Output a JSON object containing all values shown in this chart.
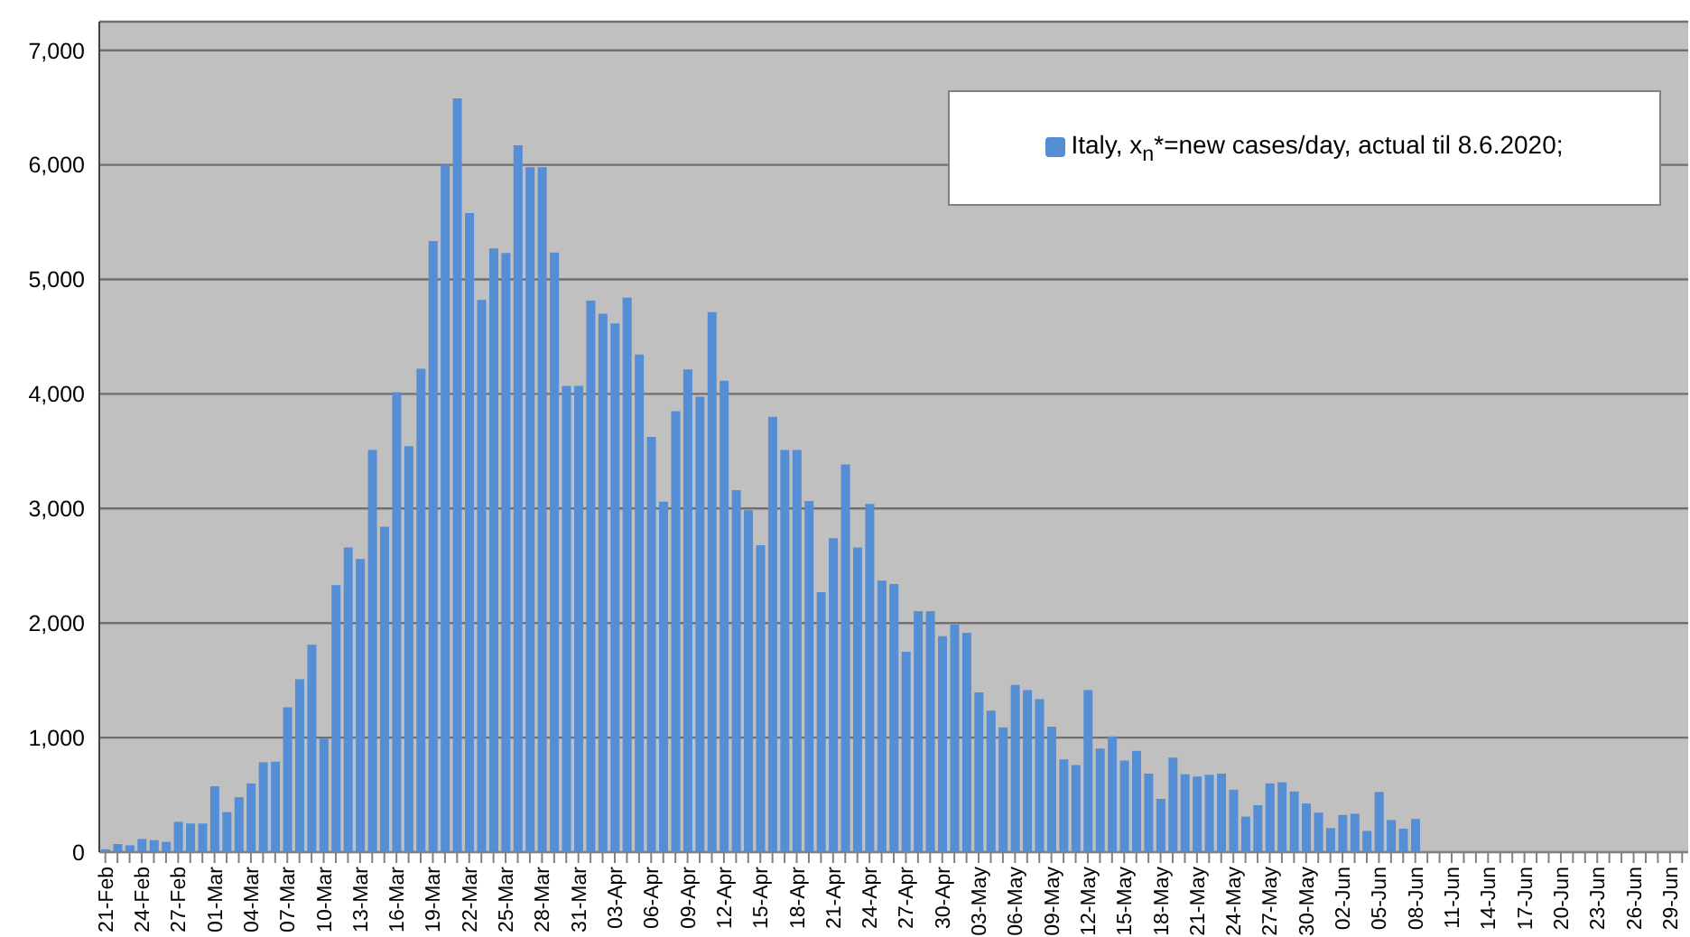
{
  "chart_data": {
    "type": "bar",
    "categories": [
      "21-Feb",
      null,
      null,
      "24-Feb",
      null,
      null,
      "27-Feb",
      null,
      null,
      "01-Mar",
      null,
      null,
      "04-Mar",
      null,
      null,
      "07-Mar",
      null,
      null,
      "10-Mar",
      null,
      null,
      "13-Mar",
      null,
      null,
      "16-Mar",
      null,
      null,
      "19-Mar",
      null,
      null,
      "22-Mar",
      null,
      null,
      "25-Mar",
      null,
      null,
      "28-Mar",
      null,
      null,
      "31-Mar",
      null,
      null,
      "03-Apr",
      null,
      null,
      "06-Apr",
      null,
      null,
      "09-Apr",
      null,
      null,
      "12-Apr",
      null,
      null,
      "15-Apr",
      null,
      null,
      "18-Apr",
      null,
      null,
      "21-Apr",
      null,
      null,
      "24-Apr",
      null,
      null,
      "27-Apr",
      null,
      null,
      "30-Apr",
      null,
      null,
      "03-May",
      null,
      null,
      "06-May",
      null,
      null,
      "09-May",
      null,
      null,
      "12-May",
      null,
      null,
      "15-May",
      null,
      null,
      "18-May",
      null,
      null,
      "21-May",
      null,
      null,
      "24-May",
      null,
      null,
      "27-May",
      null,
      null,
      "30-May",
      null,
      null,
      "02-Jun",
      null,
      null,
      "05-Jun",
      null,
      null,
      "08-Jun",
      null,
      null,
      "11-Jun",
      null,
      null,
      "14-Jun",
      null,
      null,
      "17-Jun",
      null,
      null,
      "20-Jun",
      null,
      null,
      "23-Jun",
      null,
      null,
      "26-Jun",
      null,
      null,
      "29-Jun",
      null
    ],
    "series": [
      {
        "name": "Italy, x$_{n}$*=new cases/day, actual til 8.6.2020;",
        "color": "#558ed5",
        "values": [
          25,
          70,
          60,
          115,
          105,
          90,
          265,
          250,
          250,
          575,
          350,
          480,
          600,
          785,
          790,
          1265,
          1510,
          1810,
          990,
          2330,
          2660,
          2560,
          3510,
          2840,
          4015,
          3545,
          4220,
          5335,
          6000,
          6580,
          5580,
          4820,
          5270,
          5230,
          6170,
          5980,
          5980,
          5235,
          4070,
          4070,
          4815,
          4700,
          4615,
          4840,
          4345,
          3625,
          3060,
          3850,
          4215,
          3975,
          4715,
          4115,
          3160,
          2985,
          2680,
          3800,
          3510,
          3510,
          3065,
          2270,
          2740,
          3385,
          2660,
          3040,
          2370,
          2340,
          1750,
          2105,
          2105,
          1885,
          1985,
          1915,
          1395,
          1235,
          1090,
          1460,
          1415,
          1335,
          1095,
          810,
          760,
          1415,
          905,
          1010,
          800,
          885,
          685,
          465,
          825,
          680,
          660,
          675,
          685,
          545,
          310,
          410,
          600,
          610,
          530,
          425,
          345,
          210,
          325,
          335,
          185,
          525,
          280,
          205,
          290,
          null,
          null,
          null,
          null,
          null,
          null,
          null,
          null,
          null,
          null,
          null,
          null,
          null,
          null,
          null,
          null,
          null,
          null,
          null,
          null,
          null,
          null
        ]
      }
    ],
    "ylim": [
      0,
      7250
    ],
    "yticks": [
      {
        "value": 0,
        "label": "0"
      },
      {
        "value": 1000,
        "label": "1,000"
      },
      {
        "value": 2000,
        "label": "2,000"
      },
      {
        "value": 3000,
        "label": "3,000"
      },
      {
        "value": 4000,
        "label": "4,000"
      },
      {
        "value": 5000,
        "label": "5,000"
      },
      {
        "value": 6000,
        "label": "6,000"
      },
      {
        "value": 7000,
        "label": "7,000"
      }
    ],
    "grid": "y",
    "legend": "top right"
  }
}
